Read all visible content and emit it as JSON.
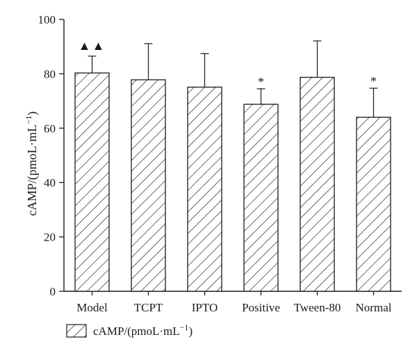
{
  "chart_data": {
    "type": "bar",
    "categories": [
      "Model",
      "TCPT",
      "IPTO",
      "Positive",
      "Tween-80",
      "Normal"
    ],
    "series": [
      {
        "name": "cAMP/(pmoL·mL−1)",
        "values": [
          80.3,
          77.8,
          75.1,
          68.8,
          78.7,
          64.0
        ],
        "error_upper": [
          86.5,
          91.1,
          87.4,
          74.5,
          92.1,
          74.7
        ]
      }
    ],
    "significance_marks": [
      "▲▲",
      "",
      "",
      "*",
      "",
      "*"
    ],
    "ylabel": "cAMP/(pmoL·mL",
    "ylabel_superscript": "−1",
    "ylabel_suffix": ")",
    "ylim": [
      0,
      100
    ],
    "yticks": [
      0,
      20,
      40,
      60,
      80,
      100
    ],
    "legend": {
      "label": "cAMP/(pmoL·mL",
      "superscript": "−1",
      "suffix": ")",
      "placement": "bottom-left"
    },
    "grid": false,
    "fill_pattern": "diagonal-hatch",
    "colors": {
      "stroke": "#1a1a1a",
      "background": "#ffffff"
    }
  }
}
